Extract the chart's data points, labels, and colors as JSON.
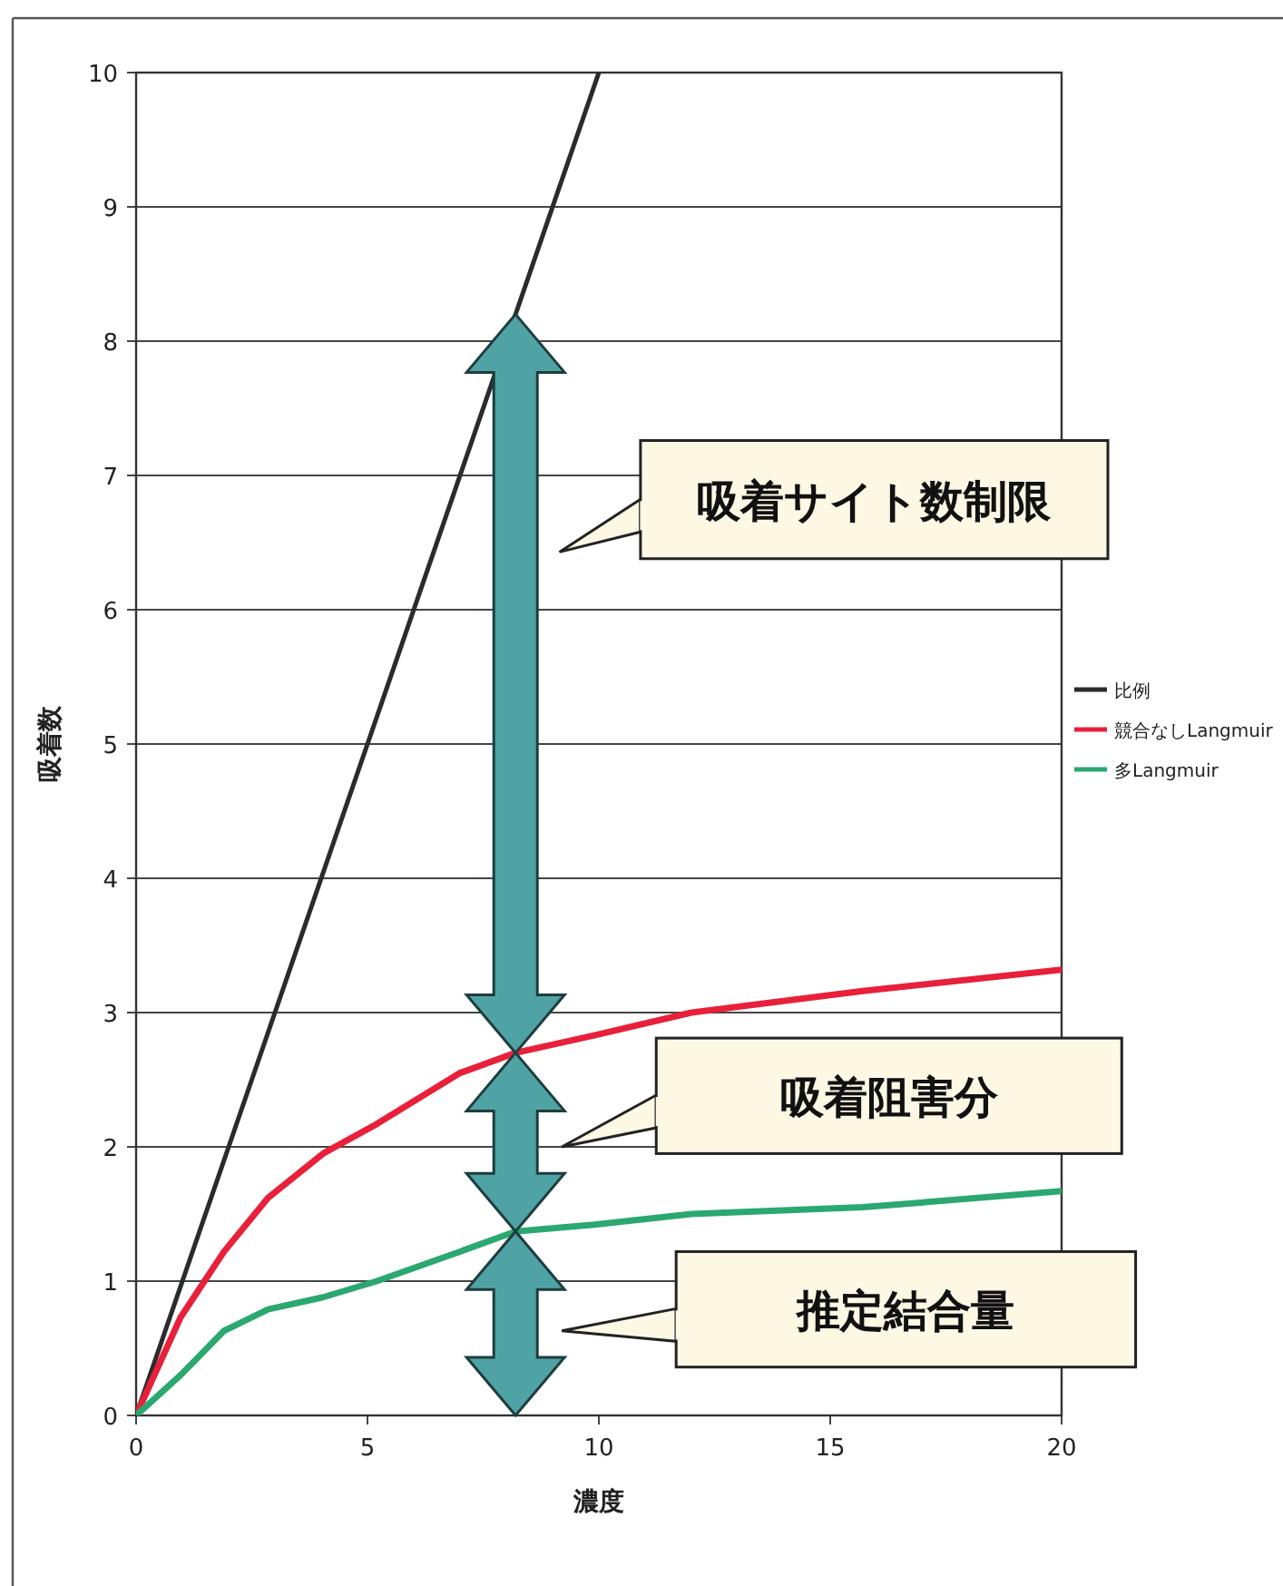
{
  "chart_data": {
    "type": "line",
    "xlabel": "濃度",
    "ylabel": "吸着数",
    "xlim": [
      0,
      20
    ],
    "ylim": [
      0,
      10
    ],
    "xticks": [
      0,
      5,
      10,
      15,
      20
    ],
    "yticks": [
      0,
      1,
      2,
      3,
      4,
      5,
      6,
      7,
      8,
      9,
      10
    ],
    "grid": "y",
    "legend": "right",
    "line_style": "solid",
    "marker": "none",
    "series": [
      {
        "name": "比例",
        "color": "#2b2b2b",
        "x": [
          0,
          10
        ],
        "values": [
          0,
          10
        ]
      },
      {
        "name": "競合なしLangmuir",
        "color": "#e8203a",
        "x": [
          0,
          0.96,
          1.9,
          2.85,
          4.04,
          5.2,
          7,
          8.2,
          9.9,
          12,
          15.7,
          20
        ],
        "values": [
          0,
          0.73,
          1.22,
          1.62,
          1.95,
          2.17,
          2.55,
          2.7,
          2.83,
          3.0,
          3.16,
          3.32
        ]
      },
      {
        "name": "多Langmuir",
        "color": "#2aa870",
        "x": [
          0,
          0.96,
          1.9,
          2.85,
          4.04,
          5.2,
          7,
          8.2,
          9.9,
          12,
          15.7,
          20
        ],
        "values": [
          0,
          0.3,
          0.63,
          0.79,
          0.88,
          1.0,
          1.22,
          1.37,
          1.42,
          1.5,
          1.55,
          1.67
        ]
      }
    ],
    "annotations": [
      "吸着サイト数制限",
      "吸着阻害分",
      "推定結合量"
    ]
  }
}
